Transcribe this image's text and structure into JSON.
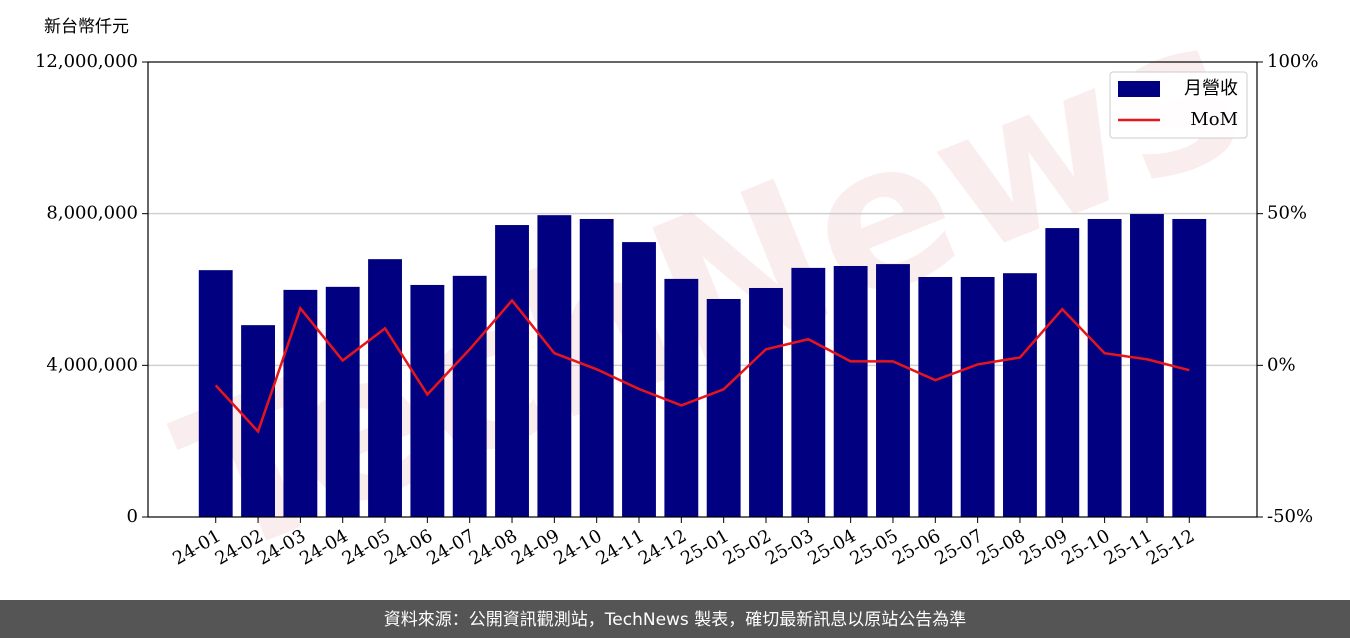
{
  "chart_data": {
    "type": "bar_line",
    "y_unit_label": "新台幣仟元",
    "watermark": "TechNews",
    "categories": [
      "24-01",
      "24-02",
      "24-03",
      "24-04",
      "24-05",
      "24-06",
      "24-07",
      "24-08",
      "24-09",
      "24-10",
      "24-11",
      "24-12",
      "25-01",
      "25-02",
      "25-03",
      "25-04",
      "25-05",
      "25-06",
      "25-07",
      "25-08",
      "25-09",
      "25-10",
      "25-11",
      "25-12"
    ],
    "series": [
      {
        "name": "月營收",
        "color": "#000080",
        "values": [
          6510000,
          5060000,
          5990000,
          6070000,
          6800000,
          6120000,
          6360000,
          7700000,
          7960000,
          7860000,
          7250000,
          6280000,
          5750000,
          6040000,
          6570000,
          6620000,
          6670000,
          6330000,
          6330000,
          6430000,
          7620000,
          7860000,
          7990000,
          7860000
        ]
      },
      {
        "name": "MoM",
        "color": "#e8141c",
        "axis": "y2",
        "values": [
          -6.6,
          -21.8,
          18.8,
          1.6,
          12.2,
          -9.6,
          5.3,
          21.4,
          4.0,
          -1.3,
          -7.8,
          -13.2,
          -7.9,
          5.3,
          8.6,
          1.3,
          1.3,
          -4.9,
          0.3,
          2.6,
          18.5,
          4.0,
          2.0,
          -1.6
        ]
      }
    ],
    "ylim": [
      0,
      12000000
    ],
    "yticks": [
      0,
      {
        "value": 4000000,
        "label": "4,000,000"
      },
      {
        "value": 8000000,
        "label": "8,000,000"
      },
      {
        "value": 12000000,
        "label": "12,000,000"
      }
    ],
    "y2lim": [
      -50,
      100
    ],
    "y2ticks": [
      {
        "value": -50,
        "label": "-50%"
      },
      {
        "value": 0,
        "label": "0%"
      },
      {
        "value": 50,
        "label": "50%"
      },
      {
        "value": 100,
        "label": "100%"
      }
    ],
    "grid": true,
    "legend": "upper right",
    "footer": "資料來源：公開資訊觀測站，TechNews 製表，確切最新訊息以原站公告為準"
  }
}
